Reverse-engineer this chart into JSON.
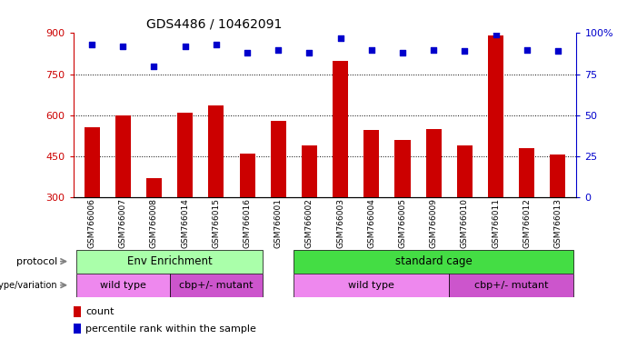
{
  "title": "GDS4486 / 10462091",
  "samples": [
    "GSM766006",
    "GSM766007",
    "GSM766008",
    "GSM766014",
    "GSM766015",
    "GSM766016",
    "GSM766001",
    "GSM766002",
    "GSM766003",
    "GSM766004",
    "GSM766005",
    "GSM766009",
    "GSM766010",
    "GSM766011",
    "GSM766012",
    "GSM766013"
  ],
  "counts": [
    555,
    600,
    370,
    610,
    635,
    460,
    580,
    490,
    800,
    545,
    510,
    550,
    490,
    890,
    480,
    455
  ],
  "percentiles": [
    93,
    92,
    80,
    92,
    93,
    88,
    90,
    88,
    97,
    90,
    88,
    90,
    89,
    99,
    90,
    89
  ],
  "ylim_left": [
    300,
    900
  ],
  "ylim_right": [
    0,
    100
  ],
  "yticks_left": [
    300,
    450,
    600,
    750,
    900
  ],
  "yticks_right": [
    0,
    25,
    50,
    75,
    100
  ],
  "bar_color": "#cc0000",
  "dot_color": "#0000cc",
  "protocol_labels": [
    "Env Enrichment",
    "standard cage"
  ],
  "protocol_colors": [
    "#aaffaa",
    "#44dd44"
  ],
  "genotype_colors": [
    "#ee88ee",
    "#cc55cc",
    "#ee88ee",
    "#cc55cc"
  ],
  "genotype_labels": [
    "wild type",
    "cbp+/- mutant",
    "wild type",
    "cbp+/- mutant"
  ],
  "legend_count_label": "count",
  "legend_pct_label": "percentile rank within the sample",
  "tick_bg_color": "#c8c8c8",
  "fig_bg": "#ffffff",
  "hgrid_vals": [
    450,
    600,
    750
  ]
}
